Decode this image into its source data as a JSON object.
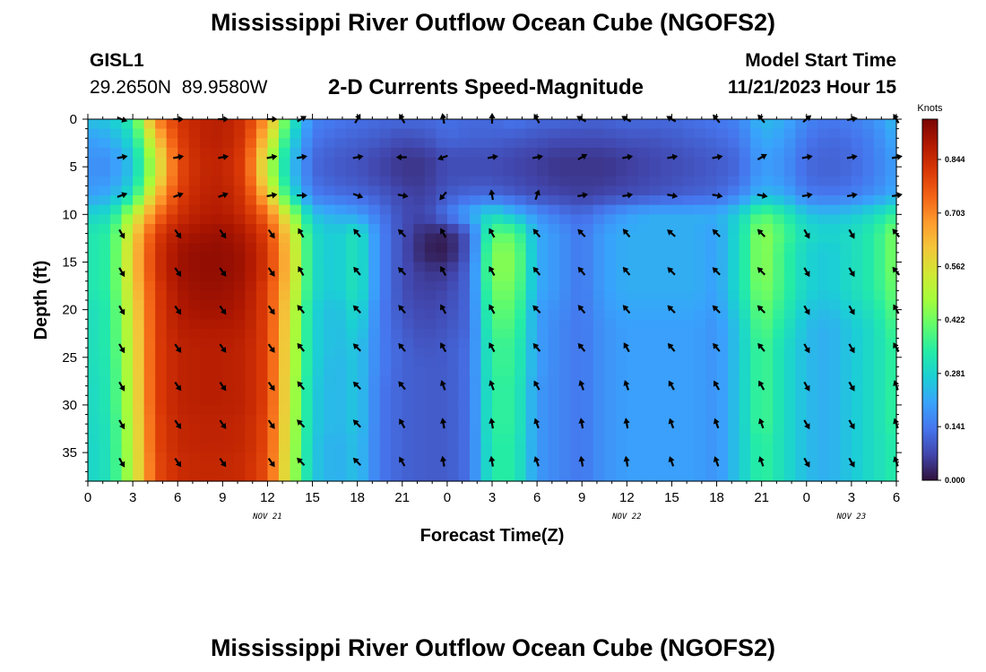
{
  "header": {
    "title": "Mississippi River Outflow Ocean Cube (NGOFS2)",
    "station_id": "GISL1",
    "station_coords": "29.2650N  89.9580W",
    "subtitle": "2-D Currents Speed-Magnitude",
    "model_start_label": "Model Start Time",
    "model_start_value": "11/21/2023 Hour 15"
  },
  "footer": {
    "title": "Mississippi River Outflow Ocean Cube (NGOFS2)"
  },
  "chart_data": {
    "type": "heatmap",
    "title": "2-D Currents Speed-Magnitude",
    "xlabel": "Forecast Time(Z)",
    "ylabel": "Depth (ft)",
    "x_tick_labels": [
      "0",
      "3",
      "6",
      "9",
      "12",
      "15",
      "18",
      "21",
      "0",
      "3",
      "6",
      "9",
      "12",
      "15",
      "18",
      "21",
      "0",
      "3",
      "6"
    ],
    "x_tick_hours": [
      0,
      3,
      6,
      9,
      12,
      15,
      18,
      21,
      24,
      27,
      30,
      33,
      36,
      39,
      42,
      45,
      48,
      51,
      54
    ],
    "date_labels": [
      {
        "text": "NOV 21",
        "hour": 12
      },
      {
        "text": "NOV 22",
        "hour": 36
      },
      {
        "text": "NOV 23",
        "hour": 51
      }
    ],
    "xlim_hours": [
      0,
      54
    ],
    "y_tick_labels": [
      "0",
      "5",
      "10",
      "15",
      "20",
      "25",
      "30",
      "35"
    ],
    "y_ticks": [
      0,
      5,
      10,
      15,
      20,
      25,
      30,
      35
    ],
    "ylim": [
      0,
      38
    ],
    "y_inverted": true,
    "colorbar": {
      "unit": "Knots",
      "tick_labels": [
        "0.000",
        "0.141",
        "0.281",
        "0.422",
        "0.562",
        "0.703",
        "0.844"
      ],
      "ticks": [
        0.0,
        0.141,
        0.281,
        0.422,
        0.562,
        0.703,
        0.844
      ],
      "range": [
        0,
        0.95
      ],
      "colors": [
        "#30123b",
        "#4145ab",
        "#4675ed",
        "#39a2fc",
        "#1bcfd4",
        "#24eca6",
        "#61fc6c",
        "#a4fc3b",
        "#d1e834",
        "#f3c63a",
        "#fe9b2d",
        "#f36315",
        "#d93806",
        "#b11901",
        "#7a0403"
      ]
    },
    "speed_hours": [
      0,
      1.5,
      3,
      4.5,
      6,
      7.5,
      9,
      10.5,
      12,
      13.5,
      15,
      16.5,
      18,
      19.5,
      21,
      22.5,
      24,
      25.5,
      27,
      28.5,
      30,
      31.5,
      33,
      34.5,
      36,
      37.5,
      39,
      40.5,
      42,
      43.5,
      45,
      46.5,
      48,
      49.5,
      51,
      52.5,
      54
    ],
    "speed_depths": [
      0,
      2,
      4,
      6,
      8,
      10,
      12,
      14,
      16,
      18,
      20,
      22,
      24,
      26,
      28,
      30,
      32,
      34,
      36,
      38
    ],
    "speed_knots": [
      [
        0.25,
        0.26,
        0.35,
        0.7,
        0.82,
        0.86,
        0.87,
        0.83,
        0.68,
        0.35,
        0.16,
        0.14,
        0.13,
        0.12,
        0.12,
        0.12,
        0.13,
        0.12,
        0.12,
        0.14,
        0.12,
        0.12,
        0.11,
        0.11,
        0.12,
        0.12,
        0.12,
        0.13,
        0.14,
        0.16,
        0.24,
        0.22,
        0.16,
        0.14,
        0.15,
        0.18,
        0.24
      ],
      [
        0.2,
        0.22,
        0.3,
        0.6,
        0.8,
        0.86,
        0.87,
        0.82,
        0.6,
        0.3,
        0.14,
        0.12,
        0.11,
        0.1,
        0.08,
        0.09,
        0.12,
        0.11,
        0.11,
        0.1,
        0.09,
        0.08,
        0.08,
        0.08,
        0.09,
        0.09,
        0.1,
        0.11,
        0.12,
        0.14,
        0.22,
        0.2,
        0.14,
        0.12,
        0.13,
        0.16,
        0.22
      ],
      [
        0.18,
        0.18,
        0.26,
        0.52,
        0.78,
        0.85,
        0.86,
        0.8,
        0.52,
        0.26,
        0.12,
        0.1,
        0.09,
        0.07,
        0.05,
        0.05,
        0.08,
        0.08,
        0.08,
        0.07,
        0.06,
        0.05,
        0.05,
        0.05,
        0.06,
        0.07,
        0.08,
        0.09,
        0.1,
        0.12,
        0.2,
        0.18,
        0.12,
        0.11,
        0.12,
        0.15,
        0.2
      ],
      [
        0.18,
        0.18,
        0.26,
        0.52,
        0.78,
        0.85,
        0.86,
        0.8,
        0.52,
        0.26,
        0.12,
        0.1,
        0.09,
        0.07,
        0.05,
        0.05,
        0.08,
        0.08,
        0.08,
        0.07,
        0.06,
        0.05,
        0.05,
        0.05,
        0.06,
        0.07,
        0.08,
        0.09,
        0.1,
        0.12,
        0.2,
        0.18,
        0.12,
        0.11,
        0.12,
        0.15,
        0.2
      ],
      [
        0.2,
        0.22,
        0.32,
        0.62,
        0.8,
        0.86,
        0.87,
        0.82,
        0.62,
        0.32,
        0.15,
        0.13,
        0.12,
        0.1,
        0.07,
        0.06,
        0.1,
        0.12,
        0.12,
        0.1,
        0.08,
        0.07,
        0.06,
        0.07,
        0.08,
        0.09,
        0.1,
        0.11,
        0.12,
        0.16,
        0.24,
        0.22,
        0.15,
        0.14,
        0.15,
        0.18,
        0.22
      ],
      [
        0.28,
        0.3,
        0.5,
        0.72,
        0.83,
        0.87,
        0.88,
        0.84,
        0.74,
        0.5,
        0.25,
        0.22,
        0.2,
        0.14,
        0.08,
        0.07,
        0.14,
        0.22,
        0.3,
        0.24,
        0.18,
        0.14,
        0.12,
        0.16,
        0.2,
        0.22,
        0.22,
        0.22,
        0.22,
        0.28,
        0.4,
        0.34,
        0.26,
        0.24,
        0.26,
        0.3,
        0.36
      ],
      [
        0.32,
        0.35,
        0.58,
        0.8,
        0.88,
        0.9,
        0.91,
        0.88,
        0.8,
        0.58,
        0.3,
        0.26,
        0.32,
        0.16,
        0.08,
        0.03,
        0.02,
        0.1,
        0.4,
        0.4,
        0.22,
        0.18,
        0.14,
        0.2,
        0.22,
        0.22,
        0.22,
        0.22,
        0.2,
        0.3,
        0.46,
        0.38,
        0.3,
        0.28,
        0.3,
        0.34,
        0.44
      ],
      [
        0.32,
        0.35,
        0.6,
        0.82,
        0.9,
        0.92,
        0.92,
        0.9,
        0.82,
        0.6,
        0.3,
        0.26,
        0.32,
        0.16,
        0.08,
        0.02,
        0.01,
        0.1,
        0.44,
        0.44,
        0.22,
        0.18,
        0.14,
        0.2,
        0.22,
        0.22,
        0.22,
        0.22,
        0.2,
        0.3,
        0.46,
        0.36,
        0.28,
        0.26,
        0.3,
        0.34,
        0.44
      ],
      [
        0.32,
        0.35,
        0.6,
        0.82,
        0.9,
        0.92,
        0.92,
        0.9,
        0.82,
        0.6,
        0.3,
        0.26,
        0.32,
        0.16,
        0.08,
        0.05,
        0.05,
        0.12,
        0.44,
        0.44,
        0.22,
        0.18,
        0.14,
        0.2,
        0.22,
        0.22,
        0.22,
        0.22,
        0.2,
        0.3,
        0.46,
        0.36,
        0.28,
        0.26,
        0.3,
        0.34,
        0.44
      ],
      [
        0.32,
        0.35,
        0.58,
        0.8,
        0.89,
        0.91,
        0.91,
        0.89,
        0.8,
        0.58,
        0.3,
        0.26,
        0.32,
        0.16,
        0.08,
        0.06,
        0.07,
        0.12,
        0.42,
        0.42,
        0.22,
        0.18,
        0.14,
        0.2,
        0.22,
        0.22,
        0.22,
        0.22,
        0.2,
        0.3,
        0.44,
        0.36,
        0.28,
        0.26,
        0.3,
        0.34,
        0.42
      ],
      [
        0.3,
        0.34,
        0.56,
        0.8,
        0.88,
        0.9,
        0.9,
        0.88,
        0.8,
        0.56,
        0.28,
        0.24,
        0.3,
        0.15,
        0.09,
        0.07,
        0.08,
        0.12,
        0.4,
        0.4,
        0.2,
        0.17,
        0.14,
        0.19,
        0.21,
        0.21,
        0.21,
        0.21,
        0.19,
        0.28,
        0.42,
        0.34,
        0.26,
        0.24,
        0.28,
        0.32,
        0.4
      ],
      [
        0.3,
        0.34,
        0.55,
        0.8,
        0.87,
        0.88,
        0.88,
        0.87,
        0.8,
        0.55,
        0.28,
        0.24,
        0.28,
        0.15,
        0.1,
        0.08,
        0.09,
        0.12,
        0.38,
        0.38,
        0.2,
        0.16,
        0.14,
        0.18,
        0.2,
        0.2,
        0.2,
        0.2,
        0.18,
        0.26,
        0.4,
        0.32,
        0.24,
        0.22,
        0.26,
        0.3,
        0.38
      ],
      [
        0.3,
        0.34,
        0.54,
        0.8,
        0.86,
        0.87,
        0.87,
        0.86,
        0.8,
        0.54,
        0.28,
        0.24,
        0.26,
        0.15,
        0.11,
        0.09,
        0.1,
        0.13,
        0.36,
        0.36,
        0.2,
        0.16,
        0.14,
        0.18,
        0.2,
        0.2,
        0.2,
        0.2,
        0.18,
        0.26,
        0.38,
        0.3,
        0.24,
        0.22,
        0.26,
        0.3,
        0.36
      ],
      [
        0.3,
        0.33,
        0.54,
        0.8,
        0.86,
        0.87,
        0.87,
        0.86,
        0.8,
        0.54,
        0.28,
        0.23,
        0.26,
        0.15,
        0.11,
        0.1,
        0.1,
        0.13,
        0.36,
        0.36,
        0.2,
        0.16,
        0.14,
        0.18,
        0.2,
        0.2,
        0.2,
        0.2,
        0.18,
        0.26,
        0.38,
        0.3,
        0.24,
        0.22,
        0.26,
        0.3,
        0.36
      ],
      [
        0.29,
        0.33,
        0.53,
        0.8,
        0.86,
        0.87,
        0.87,
        0.86,
        0.8,
        0.53,
        0.27,
        0.23,
        0.26,
        0.14,
        0.11,
        0.1,
        0.1,
        0.13,
        0.35,
        0.35,
        0.19,
        0.16,
        0.14,
        0.18,
        0.2,
        0.2,
        0.2,
        0.2,
        0.18,
        0.26,
        0.38,
        0.3,
        0.24,
        0.22,
        0.26,
        0.3,
        0.36
      ],
      [
        0.29,
        0.33,
        0.53,
        0.8,
        0.86,
        0.87,
        0.87,
        0.86,
        0.8,
        0.53,
        0.27,
        0.23,
        0.26,
        0.14,
        0.11,
        0.1,
        0.1,
        0.13,
        0.35,
        0.35,
        0.19,
        0.16,
        0.14,
        0.18,
        0.2,
        0.2,
        0.2,
        0.2,
        0.18,
        0.26,
        0.38,
        0.3,
        0.24,
        0.22,
        0.26,
        0.3,
        0.36
      ],
      [
        0.29,
        0.32,
        0.52,
        0.79,
        0.85,
        0.86,
        0.86,
        0.85,
        0.79,
        0.52,
        0.27,
        0.23,
        0.26,
        0.14,
        0.11,
        0.1,
        0.1,
        0.13,
        0.35,
        0.35,
        0.19,
        0.16,
        0.14,
        0.18,
        0.2,
        0.2,
        0.2,
        0.2,
        0.18,
        0.26,
        0.38,
        0.3,
        0.24,
        0.22,
        0.26,
        0.3,
        0.36
      ],
      [
        0.28,
        0.32,
        0.52,
        0.79,
        0.85,
        0.86,
        0.86,
        0.85,
        0.79,
        0.52,
        0.26,
        0.22,
        0.25,
        0.14,
        0.11,
        0.1,
        0.1,
        0.13,
        0.34,
        0.34,
        0.19,
        0.16,
        0.14,
        0.18,
        0.2,
        0.2,
        0.2,
        0.2,
        0.18,
        0.26,
        0.36,
        0.3,
        0.24,
        0.22,
        0.26,
        0.3,
        0.34
      ],
      [
        0.28,
        0.32,
        0.51,
        0.78,
        0.84,
        0.85,
        0.85,
        0.84,
        0.78,
        0.51,
        0.26,
        0.22,
        0.25,
        0.14,
        0.11,
        0.1,
        0.1,
        0.13,
        0.34,
        0.34,
        0.19,
        0.16,
        0.14,
        0.18,
        0.2,
        0.2,
        0.2,
        0.2,
        0.18,
        0.26,
        0.36,
        0.3,
        0.24,
        0.22,
        0.26,
        0.3,
        0.34
      ],
      [
        0.28,
        0.32,
        0.51,
        0.78,
        0.84,
        0.85,
        0.85,
        0.84,
        0.78,
        0.51,
        0.26,
        0.22,
        0.25,
        0.14,
        0.11,
        0.1,
        0.1,
        0.13,
        0.34,
        0.34,
        0.19,
        0.16,
        0.14,
        0.18,
        0.2,
        0.2,
        0.2,
        0.2,
        0.18,
        0.26,
        0.36,
        0.3,
        0.24,
        0.22,
        0.26,
        0.3,
        0.34
      ]
    ],
    "arrow_hours": [
      2.25,
      6,
      9,
      12.25,
      14.25,
      18,
      21,
      23.75,
      27,
      30,
      33,
      36,
      39,
      42,
      45,
      48,
      51,
      54
    ],
    "arrow_depths": [
      0,
      4,
      8,
      12,
      16,
      20,
      24,
      28,
      32,
      36
    ],
    "arrow_dir_deg": [
      [
        110,
        90,
        90,
        90,
        60,
        30,
        330,
        350,
        0,
        330,
        300,
        300,
        300,
        320,
        320,
        50,
        80,
        330
      ],
      [
        80,
        80,
        80,
        80,
        80,
        80,
        270,
        250,
        80,
        80,
        60,
        80,
        80,
        80,
        60,
        80,
        80,
        80
      ],
      [
        70,
        70,
        70,
        80,
        90,
        110,
        100,
        220,
        350,
        20,
        80,
        80,
        100,
        100,
        100,
        80,
        80,
        80
      ],
      [
        150,
        145,
        145,
        145,
        330,
        320,
        315,
        330,
        330,
        320,
        315,
        320,
        310,
        315,
        315,
        150,
        150,
        320
      ],
      [
        150,
        145,
        145,
        145,
        330,
        320,
        315,
        330,
        330,
        320,
        320,
        320,
        315,
        315,
        315,
        150,
        150,
        320
      ],
      [
        150,
        145,
        145,
        145,
        320,
        315,
        320,
        330,
        330,
        315,
        320,
        320,
        315,
        315,
        315,
        150,
        150,
        330
      ],
      [
        150,
        145,
        145,
        145,
        320,
        315,
        320,
        330,
        330,
        320,
        320,
        330,
        320,
        320,
        320,
        150,
        150,
        330
      ],
      [
        150,
        145,
        145,
        145,
        320,
        315,
        320,
        340,
        340,
        330,
        340,
        340,
        330,
        330,
        330,
        150,
        150,
        340
      ],
      [
        150,
        145,
        145,
        145,
        315,
        315,
        330,
        350,
        350,
        340,
        350,
        350,
        340,
        340,
        340,
        150,
        150,
        340
      ],
      [
        150,
        145,
        145,
        145,
        315,
        315,
        330,
        350,
        350,
        340,
        350,
        350,
        340,
        340,
        340,
        150,
        150,
        340
      ]
    ]
  }
}
